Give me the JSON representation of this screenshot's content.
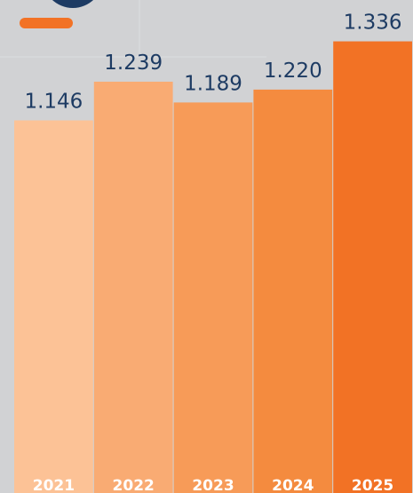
{
  "chart_data": {
    "type": "bar",
    "categories": [
      "2021",
      "2022",
      "2023",
      "2024",
      "2025"
    ],
    "values": [
      1.146,
      1.239,
      1.189,
      1.22,
      1.336
    ],
    "value_labels": [
      "1.146",
      "1.239",
      "1.189",
      "1.220",
      "1.336"
    ],
    "colors": [
      "#fcc296",
      "#f9ab73",
      "#f79b58",
      "#f48b3f",
      "#f27225"
    ],
    "ylim": [
      0.25,
      1.35
    ]
  }
}
